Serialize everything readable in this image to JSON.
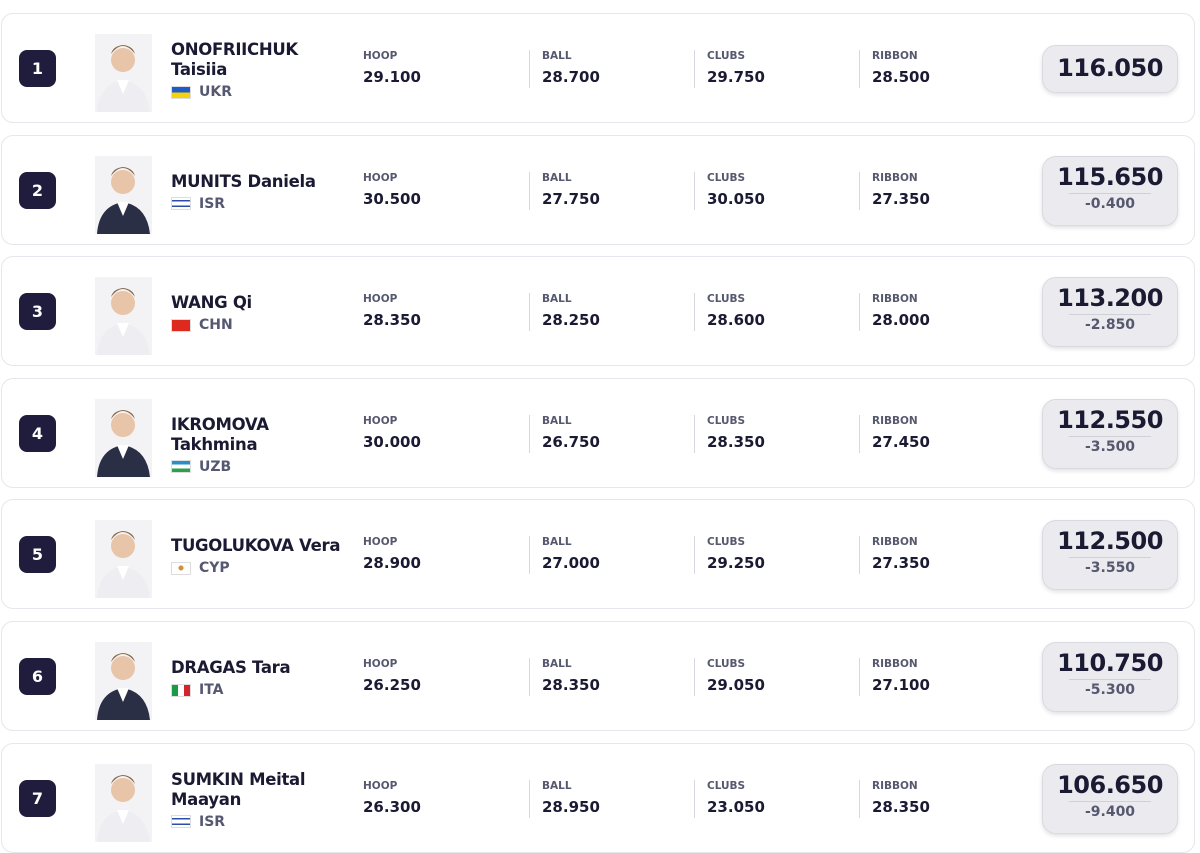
{
  "apparatus": [
    "HOOP",
    "BALL",
    "CLUBS",
    "RIBBON"
  ],
  "rows": [
    {
      "rank": "1",
      "name": "ONOFRIICHUK Taisiia",
      "country": "UKR",
      "scores": [
        "29.100",
        "28.700",
        "29.750",
        "28.500"
      ],
      "total": "116.050"
    },
    {
      "rank": "2",
      "name": "MUNITS Daniela",
      "country": "ISR",
      "scores": [
        "30.500",
        "27.750",
        "30.050",
        "27.350"
      ],
      "total": "115.650",
      "gap": "-0.400"
    },
    {
      "rank": "3",
      "name": "WANG Qi",
      "country": "CHN",
      "scores": [
        "28.350",
        "28.250",
        "28.600",
        "28.000"
      ],
      "total": "113.200",
      "gap": "-2.850"
    },
    {
      "rank": "4",
      "name": "IKROMOVA Takhmina",
      "country": "UZB",
      "scores": [
        "30.000",
        "26.750",
        "28.350",
        "27.450"
      ],
      "total": "112.550",
      "gap": "-3.500"
    },
    {
      "rank": "5",
      "name": "TUGOLUKOVA Vera",
      "country": "CYP",
      "scores": [
        "28.900",
        "27.000",
        "29.250",
        "27.350"
      ],
      "total": "112.500",
      "gap": "-3.550"
    },
    {
      "rank": "6",
      "name": "DRAGAS Tara",
      "country": "ITA",
      "scores": [
        "26.250",
        "28.350",
        "29.050",
        "27.100"
      ],
      "total": "110.750",
      "gap": "-5.300"
    },
    {
      "rank": "7",
      "name": "SUMKIN Meital Maayan",
      "country": "ISR",
      "scores": [
        "26.300",
        "28.950",
        "23.050",
        "28.350"
      ],
      "total": "106.650",
      "gap": "-9.400"
    }
  ]
}
